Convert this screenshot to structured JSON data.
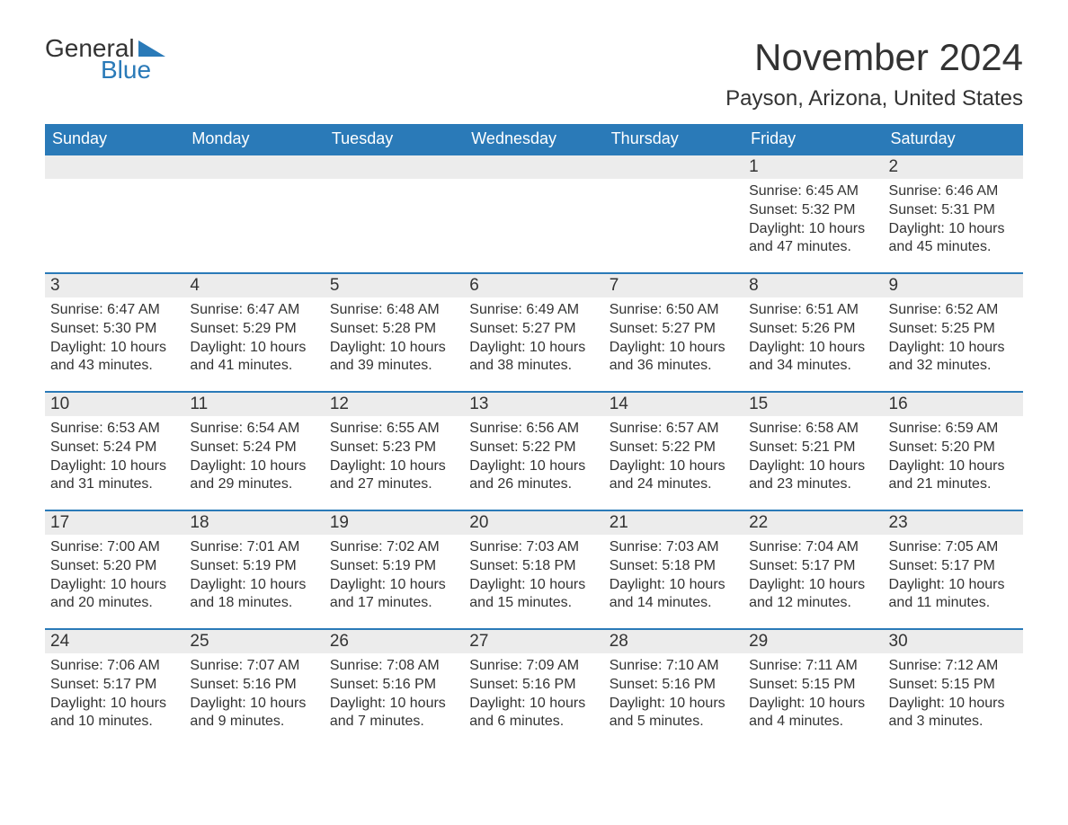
{
  "logo": {
    "text1": "General",
    "text2": "Blue"
  },
  "title": "November 2024",
  "location": "Payson, Arizona, United States",
  "colors": {
    "header_bg": "#2a7ab8",
    "header_fg": "#ffffff",
    "daynum_bg": "#ececec",
    "border_top": "#2a7ab8",
    "text": "#333333",
    "page_bg": "#ffffff"
  },
  "day_headers": [
    "Sunday",
    "Monday",
    "Tuesday",
    "Wednesday",
    "Thursday",
    "Friday",
    "Saturday"
  ],
  "weeks": [
    [
      {
        "day": "",
        "sunrise": "",
        "sunset": "",
        "daylight": ""
      },
      {
        "day": "",
        "sunrise": "",
        "sunset": "",
        "daylight": ""
      },
      {
        "day": "",
        "sunrise": "",
        "sunset": "",
        "daylight": ""
      },
      {
        "day": "",
        "sunrise": "",
        "sunset": "",
        "daylight": ""
      },
      {
        "day": "",
        "sunrise": "",
        "sunset": "",
        "daylight": ""
      },
      {
        "day": "1",
        "sunrise": "Sunrise: 6:45 AM",
        "sunset": "Sunset: 5:32 PM",
        "daylight": "Daylight: 10 hours and 47 minutes."
      },
      {
        "day": "2",
        "sunrise": "Sunrise: 6:46 AM",
        "sunset": "Sunset: 5:31 PM",
        "daylight": "Daylight: 10 hours and 45 minutes."
      }
    ],
    [
      {
        "day": "3",
        "sunrise": "Sunrise: 6:47 AM",
        "sunset": "Sunset: 5:30 PM",
        "daylight": "Daylight: 10 hours and 43 minutes."
      },
      {
        "day": "4",
        "sunrise": "Sunrise: 6:47 AM",
        "sunset": "Sunset: 5:29 PM",
        "daylight": "Daylight: 10 hours and 41 minutes."
      },
      {
        "day": "5",
        "sunrise": "Sunrise: 6:48 AM",
        "sunset": "Sunset: 5:28 PM",
        "daylight": "Daylight: 10 hours and 39 minutes."
      },
      {
        "day": "6",
        "sunrise": "Sunrise: 6:49 AM",
        "sunset": "Sunset: 5:27 PM",
        "daylight": "Daylight: 10 hours and 38 minutes."
      },
      {
        "day": "7",
        "sunrise": "Sunrise: 6:50 AM",
        "sunset": "Sunset: 5:27 PM",
        "daylight": "Daylight: 10 hours and 36 minutes."
      },
      {
        "day": "8",
        "sunrise": "Sunrise: 6:51 AM",
        "sunset": "Sunset: 5:26 PM",
        "daylight": "Daylight: 10 hours and 34 minutes."
      },
      {
        "day": "9",
        "sunrise": "Sunrise: 6:52 AM",
        "sunset": "Sunset: 5:25 PM",
        "daylight": "Daylight: 10 hours and 32 minutes."
      }
    ],
    [
      {
        "day": "10",
        "sunrise": "Sunrise: 6:53 AM",
        "sunset": "Sunset: 5:24 PM",
        "daylight": "Daylight: 10 hours and 31 minutes."
      },
      {
        "day": "11",
        "sunrise": "Sunrise: 6:54 AM",
        "sunset": "Sunset: 5:24 PM",
        "daylight": "Daylight: 10 hours and 29 minutes."
      },
      {
        "day": "12",
        "sunrise": "Sunrise: 6:55 AM",
        "sunset": "Sunset: 5:23 PM",
        "daylight": "Daylight: 10 hours and 27 minutes."
      },
      {
        "day": "13",
        "sunrise": "Sunrise: 6:56 AM",
        "sunset": "Sunset: 5:22 PM",
        "daylight": "Daylight: 10 hours and 26 minutes."
      },
      {
        "day": "14",
        "sunrise": "Sunrise: 6:57 AM",
        "sunset": "Sunset: 5:22 PM",
        "daylight": "Daylight: 10 hours and 24 minutes."
      },
      {
        "day": "15",
        "sunrise": "Sunrise: 6:58 AM",
        "sunset": "Sunset: 5:21 PM",
        "daylight": "Daylight: 10 hours and 23 minutes."
      },
      {
        "day": "16",
        "sunrise": "Sunrise: 6:59 AM",
        "sunset": "Sunset: 5:20 PM",
        "daylight": "Daylight: 10 hours and 21 minutes."
      }
    ],
    [
      {
        "day": "17",
        "sunrise": "Sunrise: 7:00 AM",
        "sunset": "Sunset: 5:20 PM",
        "daylight": "Daylight: 10 hours and 20 minutes."
      },
      {
        "day": "18",
        "sunrise": "Sunrise: 7:01 AM",
        "sunset": "Sunset: 5:19 PM",
        "daylight": "Daylight: 10 hours and 18 minutes."
      },
      {
        "day": "19",
        "sunrise": "Sunrise: 7:02 AM",
        "sunset": "Sunset: 5:19 PM",
        "daylight": "Daylight: 10 hours and 17 minutes."
      },
      {
        "day": "20",
        "sunrise": "Sunrise: 7:03 AM",
        "sunset": "Sunset: 5:18 PM",
        "daylight": "Daylight: 10 hours and 15 minutes."
      },
      {
        "day": "21",
        "sunrise": "Sunrise: 7:03 AM",
        "sunset": "Sunset: 5:18 PM",
        "daylight": "Daylight: 10 hours and 14 minutes."
      },
      {
        "day": "22",
        "sunrise": "Sunrise: 7:04 AM",
        "sunset": "Sunset: 5:17 PM",
        "daylight": "Daylight: 10 hours and 12 minutes."
      },
      {
        "day": "23",
        "sunrise": "Sunrise: 7:05 AM",
        "sunset": "Sunset: 5:17 PM",
        "daylight": "Daylight: 10 hours and 11 minutes."
      }
    ],
    [
      {
        "day": "24",
        "sunrise": "Sunrise: 7:06 AM",
        "sunset": "Sunset: 5:17 PM",
        "daylight": "Daylight: 10 hours and 10 minutes."
      },
      {
        "day": "25",
        "sunrise": "Sunrise: 7:07 AM",
        "sunset": "Sunset: 5:16 PM",
        "daylight": "Daylight: 10 hours and 9 minutes."
      },
      {
        "day": "26",
        "sunrise": "Sunrise: 7:08 AM",
        "sunset": "Sunset: 5:16 PM",
        "daylight": "Daylight: 10 hours and 7 minutes."
      },
      {
        "day": "27",
        "sunrise": "Sunrise: 7:09 AM",
        "sunset": "Sunset: 5:16 PM",
        "daylight": "Daylight: 10 hours and 6 minutes."
      },
      {
        "day": "28",
        "sunrise": "Sunrise: 7:10 AM",
        "sunset": "Sunset: 5:16 PM",
        "daylight": "Daylight: 10 hours and 5 minutes."
      },
      {
        "day": "29",
        "sunrise": "Sunrise: 7:11 AM",
        "sunset": "Sunset: 5:15 PM",
        "daylight": "Daylight: 10 hours and 4 minutes."
      },
      {
        "day": "30",
        "sunrise": "Sunrise: 7:12 AM",
        "sunset": "Sunset: 5:15 PM",
        "daylight": "Daylight: 10 hours and 3 minutes."
      }
    ]
  ]
}
